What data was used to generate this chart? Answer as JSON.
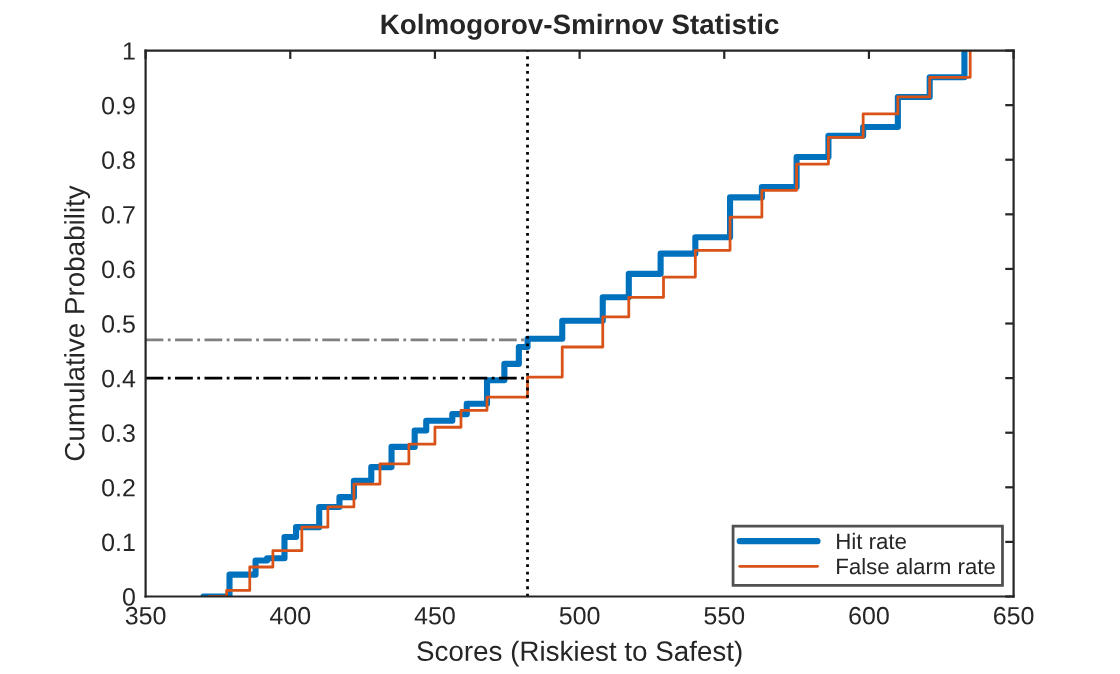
{
  "chart_data": {
    "type": "step",
    "title": "Kolmogorov-Smirnov Statistic",
    "xlabel": "Scores (Riskiest to Safest)",
    "ylabel": "Cumulative Probability",
    "xlim": [
      350,
      650
    ],
    "xticks": [
      350,
      400,
      450,
      500,
      550,
      600,
      650
    ],
    "ylim": [
      0,
      1
    ],
    "yticks": [
      0,
      0.1,
      0.2,
      0.3,
      0.4,
      0.5,
      0.6,
      0.7,
      0.8,
      0.9,
      1
    ],
    "grid": false,
    "legend": "bottom right",
    "line_style": "solid",
    "marker": "none",
    "series": [
      {
        "name": "Hit rate",
        "color": "#0072bd",
        "x": [
          370,
          379,
          388,
          392,
          398,
          402,
          410,
          417,
          422,
          428,
          435,
          443,
          447,
          456,
          461,
          468,
          474,
          479,
          482,
          494,
          508,
          517,
          528,
          540,
          552,
          563,
          575,
          586,
          598,
          610,
          621,
          633
        ],
        "values": [
          0,
          0.04,
          0.066,
          0.07,
          0.109,
          0.127,
          0.164,
          0.182,
          0.212,
          0.237,
          0.274,
          0.304,
          0.322,
          0.334,
          0.353,
          0.396,
          0.426,
          0.457,
          0.472,
          0.505,
          0.548,
          0.591,
          0.628,
          0.658,
          0.731,
          0.75,
          0.805,
          0.844,
          0.86,
          0.915,
          0.951,
          1
        ]
      },
      {
        "name": "False alarm rate",
        "color": "#d95319",
        "x": [
          372,
          378,
          386,
          394,
          404,
          413,
          422,
          431,
          441,
          450,
          459,
          468,
          482,
          494,
          508,
          517,
          529,
          540,
          552,
          563,
          575,
          586,
          598,
          610,
          621,
          635
        ],
        "values": [
          0,
          0.011,
          0.054,
          0.084,
          0.127,
          0.164,
          0.206,
          0.243,
          0.279,
          0.31,
          0.341,
          0.365,
          0.402,
          0.457,
          0.512,
          0.548,
          0.585,
          0.634,
          0.695,
          0.744,
          0.792,
          0.841,
          0.884,
          0.915,
          0.951,
          1
        ]
      }
    ],
    "ref_lines": [
      {
        "axis": "x",
        "value": 482,
        "color": "#000000",
        "line_style": "dotted"
      },
      {
        "axis": "y",
        "value": 0.47,
        "color": "#808080",
        "line_style": "dashdot"
      },
      {
        "axis": "y",
        "value": 0.4,
        "color": "#000000",
        "line_style": "dashdot"
      }
    ]
  }
}
